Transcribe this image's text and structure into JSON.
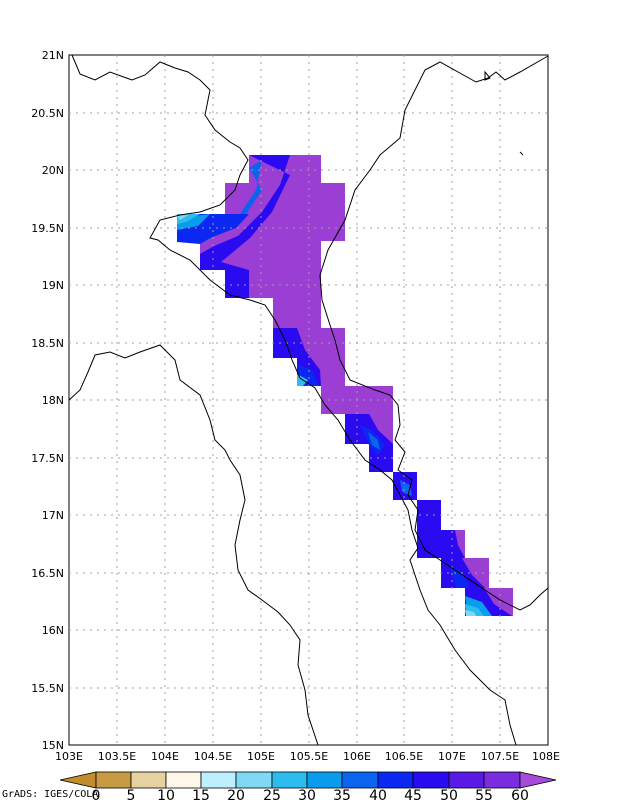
{
  "map": {
    "x_ticks": [
      "103E",
      "103.5E",
      "104E",
      "104.5E",
      "105E",
      "105.5E",
      "106E",
      "106.5E",
      "107E",
      "107.5E",
      "108E"
    ],
    "y_ticks": [
      "21N",
      "20.5N",
      "20N",
      "19.5N",
      "19N",
      "18.5N",
      "18N",
      "17.5N",
      "17N",
      "16.5N",
      "16N",
      "15.5N",
      "15N"
    ],
    "lon_range": [
      103,
      108
    ],
    "lat_range": [
      15,
      21
    ],
    "grid": "dotted",
    "fill_colors": {
      "c15_20": "#bdf0fc",
      "c20_25": "#7fd8f4",
      "c25_30": "#2cbcf0",
      "c30_35": "#0a9cec",
      "c35_40": "#0a64f0",
      "c40_45": "#0a28f2",
      "c45_50": "#2a0af0",
      "c50_55": "#5a1ae6",
      "c55_60": "#7a2ce0",
      "c60_up": "#9a3ed4"
    }
  },
  "colorbar": {
    "labels": [
      "0",
      "5",
      "10",
      "15",
      "20",
      "25",
      "30",
      "35",
      "40",
      "45",
      "50",
      "55",
      "60"
    ],
    "colors": [
      "#c89a44",
      "#e6d2a0",
      "#fff8ea",
      "#bdf0fc",
      "#7fd8f4",
      "#2cbcf0",
      "#0a9cec",
      "#0a64f0",
      "#0a28f2",
      "#2a0af0",
      "#5a1ae6",
      "#7a2ce0"
    ],
    "low_color": "#c08c2c",
    "high_color": "#a64cd8"
  },
  "credit": "GrADS: IGES/COLA"
}
